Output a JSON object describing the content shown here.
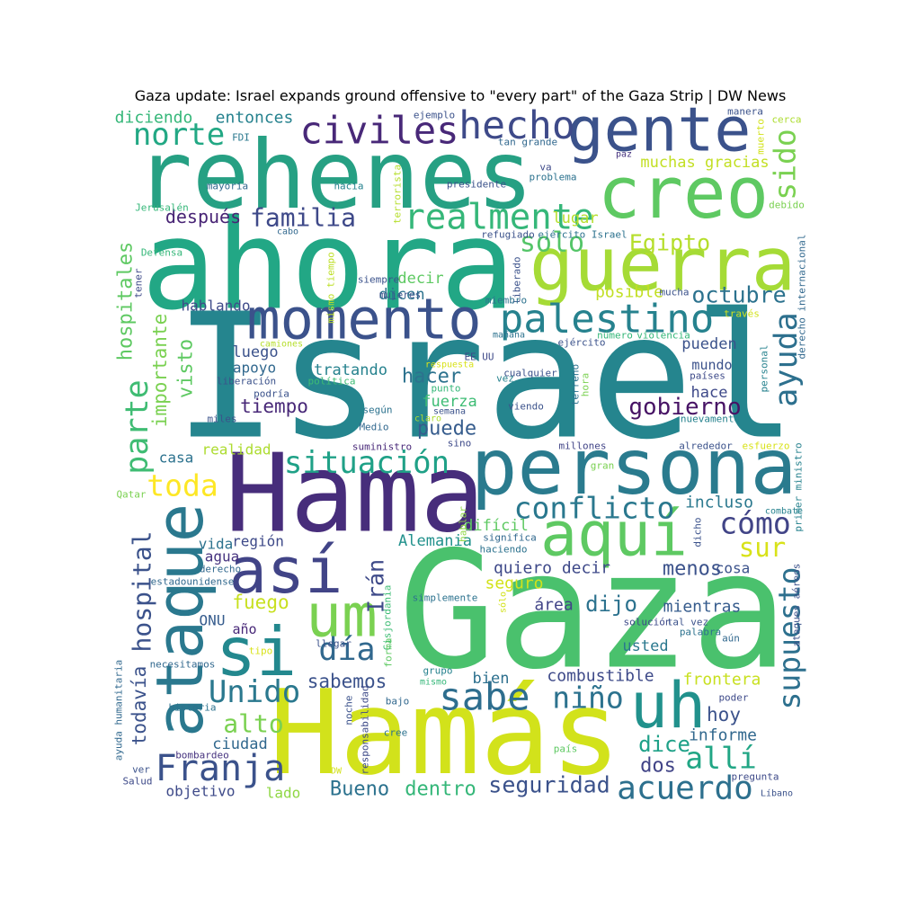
{
  "chart_data": {
    "type": "wordcloud",
    "title": "Gaza update: Israel expands ground offensive to \"every part\" of the Gaza Strip | DW News",
    "words": [
      {
        "text": "Israel",
        "weight": 96,
        "color": "#25858e"
      },
      {
        "text": "Gaza",
        "weight": 90,
        "color": "#4ac16d"
      },
      {
        "text": "Hamás",
        "weight": 65,
        "color": "#d2e21b"
      },
      {
        "text": "Hama",
        "weight": 60,
        "color": "#472d7b"
      },
      {
        "text": "ahora",
        "weight": 69,
        "color": "#22a785"
      },
      {
        "text": "rehenes",
        "weight": 52.5,
        "color": "#26a083"
      },
      {
        "text": "persona",
        "weight": 43,
        "color": "#2a7b8e"
      },
      {
        "text": "gente",
        "weight": 34,
        "color": "#3b528b"
      },
      {
        "text": "creo",
        "weight": 39.5,
        "color": "#5ec962"
      },
      {
        "text": "guerra",
        "weight": 41,
        "color": "#a5db36"
      },
      {
        "text": "ataque",
        "weight": 36,
        "color": "#2a788e"
      },
      {
        "text": "así",
        "weight": 35,
        "color": "#414487"
      },
      {
        "text": "um",
        "weight": 33,
        "color": "#7ad151"
      },
      {
        "text": "si",
        "weight": 37.5,
        "color": "#23888e"
      },
      {
        "text": "aquí",
        "weight": 34,
        "color": "#5ec962"
      },
      {
        "text": "uh",
        "weight": 35,
        "color": "#21918c"
      },
      {
        "text": "momento",
        "weight": 31,
        "color": "#3b528b"
      },
      {
        "text": "civiles",
        "weight": 21,
        "color": "#482878"
      },
      {
        "text": "hecho",
        "weight": 21.5,
        "color": "#3e4a89"
      },
      {
        "text": "palestino",
        "weight": 22,
        "color": "#26828e"
      },
      {
        "text": "norte",
        "weight": 17,
        "color": "#22a884"
      },
      {
        "text": "familia",
        "weight": 14,
        "color": "#3e4989"
      },
      {
        "text": "realmente",
        "weight": 19.5,
        "color": "#35b779"
      },
      {
        "text": "solo",
        "weight": 15,
        "color": "#54c568"
      },
      {
        "text": "Egipto",
        "weight": 12.5,
        "color": "#b5de2b"
      },
      {
        "text": "después",
        "weight": 10,
        "color": "#482475"
      },
      {
        "text": "octubre",
        "weight": 12.5,
        "color": "#2c728e"
      },
      {
        "text": "posible",
        "weight": 9,
        "color": "#c2df23"
      },
      {
        "text": "ayuda",
        "weight": 17.5,
        "color": "#2d708e"
      },
      {
        "text": "sido",
        "weight": 16.5,
        "color": "#7ad151"
      },
      {
        "text": "parte",
        "weight": 17.5,
        "color": "#3fbc73"
      },
      {
        "text": "hospitales",
        "weight": 11,
        "color": "#5ec962"
      },
      {
        "text": "importante",
        "weight": 10.5,
        "color": "#7ad151"
      },
      {
        "text": "visto",
        "weight": 11,
        "color": "#5ec962"
      },
      {
        "text": "hablando",
        "weight": 8,
        "color": "#3e4a89"
      },
      {
        "text": "luego",
        "weight": 8.5,
        "color": "#3b528b"
      },
      {
        "text": "apoyo",
        "weight": 8,
        "color": "#31688e"
      },
      {
        "text": "tratando",
        "weight": 8.5,
        "color": "#26828e"
      },
      {
        "text": "tiempo",
        "weight": 10.5,
        "color": "#482878"
      },
      {
        "text": "hacer",
        "weight": 11,
        "color": "#2c728e"
      },
      {
        "text": "fuerza",
        "weight": 8.5,
        "color": "#3dbc74"
      },
      {
        "text": "puede",
        "weight": 11,
        "color": "#365c8d"
      },
      {
        "text": "situación",
        "weight": 17,
        "color": "#1fa187"
      },
      {
        "text": "gobierno",
        "weight": 13,
        "color": "#471365"
      },
      {
        "text": "pueden",
        "weight": 8.5,
        "color": "#3b528b"
      },
      {
        "text": "mundo",
        "weight": 7.5,
        "color": "#3b528b"
      },
      {
        "text": "hace",
        "weight": 8.5,
        "color": "#3e4989"
      },
      {
        "text": "conflicto",
        "weight": 16.5,
        "color": "#2a788e"
      },
      {
        "text": "cómo",
        "weight": 16.5,
        "color": "#414487"
      },
      {
        "text": "sur",
        "weight": 14.5,
        "color": "#d8e219"
      },
      {
        "text": "incluso",
        "weight": 9,
        "color": "#2a788e"
      },
      {
        "text": "toda",
        "weight": 16.5,
        "color": "#fde725"
      },
      {
        "text": "casa",
        "weight": 8,
        "color": "#2c728e"
      },
      {
        "text": "realidad",
        "weight": 8,
        "color": "#addc30"
      },
      {
        "text": "hospital",
        "weight": 14,
        "color": "#3b528b"
      },
      {
        "text": "todavía",
        "weight": 10.5,
        "color": "#3b528b"
      },
      {
        "text": "región",
        "weight": 8,
        "color": "#3e4a89"
      },
      {
        "text": "vida",
        "weight": 8,
        "color": "#2c728e"
      },
      {
        "text": "agua",
        "weight": 8,
        "color": "#46337f"
      },
      {
        "text": "derecho",
        "weight": 5.5,
        "color": "#31688e"
      },
      {
        "text": "fuego",
        "weight": 10.5,
        "color": "#c8e020"
      },
      {
        "text": "ONU",
        "weight": 8,
        "color": "#365c8d"
      },
      {
        "text": "año",
        "weight": 7.5,
        "color": "#482878"
      },
      {
        "text": "día",
        "weight": 17.5,
        "color": "#31688e"
      },
      {
        "text": "Unido",
        "weight": 17,
        "color": "#2a788e"
      },
      {
        "text": "sabemos",
        "weight": 10.5,
        "color": "#3b528b"
      },
      {
        "text": "sabe",
        "weight": 21,
        "color": "#2e6e8e"
      },
      {
        "text": "alto",
        "weight": 14,
        "color": "#7ad151"
      },
      {
        "text": "Franja",
        "weight": 20,
        "color": "#3b528b"
      },
      {
        "text": "ciudad",
        "weight": 8.5,
        "color": "#31688e"
      },
      {
        "text": "objetivo",
        "weight": 8,
        "color": "#3e4a89"
      },
      {
        "text": "lado",
        "weight": 8,
        "color": "#8fd744"
      },
      {
        "text": "Bueno",
        "weight": 11,
        "color": "#2c728e"
      },
      {
        "text": "dentro",
        "weight": 11,
        "color": "#35b779"
      },
      {
        "text": "seguridad",
        "weight": 12.5,
        "color": "#3b528b"
      },
      {
        "text": "acuerdo",
        "weight": 18,
        "color": "#2d708e"
      },
      {
        "text": "allí",
        "weight": 16.5,
        "color": "#21a685"
      },
      {
        "text": "dice",
        "weight": 12,
        "color": "#1fa188"
      },
      {
        "text": "dos",
        "weight": 11,
        "color": "#414487"
      },
      {
        "text": "informe",
        "weight": 9,
        "color": "#31688e"
      },
      {
        "text": "hoy",
        "weight": 10.5,
        "color": "#3b528b"
      },
      {
        "text": "niño",
        "weight": 16.5,
        "color": "#2c728e"
      },
      {
        "text": "frontera",
        "weight": 9,
        "color": "#c8e020"
      },
      {
        "text": "combustible",
        "weight": 9,
        "color": "#3e4a89"
      },
      {
        "text": "bien",
        "weight": 8.5,
        "color": "#2d708e"
      },
      {
        "text": "supuesto",
        "weight": 16.5,
        "color": "#2d708e"
      },
      {
        "text": "mientras",
        "weight": 9,
        "color": "#365c8d"
      },
      {
        "text": "usted",
        "weight": 8.5,
        "color": "#2a788e"
      },
      {
        "text": "dijo",
        "weight": 12,
        "color": "#2c728e"
      },
      {
        "text": "área",
        "weight": 9,
        "color": "#414487"
      },
      {
        "text": "seguro",
        "weight": 9,
        "color": "#d2e21b"
      },
      {
        "text": "quiero decir",
        "weight": 9,
        "color": "#3e4989"
      },
      {
        "text": "menos",
        "weight": 11,
        "color": "#3b528b"
      },
      {
        "text": "cosa",
        "weight": 8,
        "color": "#3b528b"
      },
      {
        "text": "Alemania",
        "weight": 8.5,
        "color": "#21918c"
      },
      {
        "text": "Irán",
        "weight": 12.5,
        "color": "#3e4a89"
      },
      {
        "text": "difícil",
        "weight": 8.5,
        "color": "#5ec962"
      },
      {
        "text": "decir",
        "weight": 8.5,
        "color": "#5ec962"
      },
      {
        "text": "dicen",
        "weight": 8.5,
        "color": "#2c728e"
      },
      {
        "text": "lugar",
        "weight": 8.5,
        "color": "#b5de2b"
      },
      {
        "text": "muchas gracias",
        "weight": 8.5,
        "color": "#c2df23"
      },
      {
        "text": "mayoría",
        "weight": 5.5,
        "color": "#31688e"
      },
      {
        "text": "hacia",
        "weight": 5.5,
        "color": "#26828e"
      },
      {
        "text": "presidente",
        "weight": 5.5,
        "color": "#3b528b"
      },
      {
        "text": "diciendo",
        "weight": 9,
        "color": "#35b779"
      },
      {
        "text": "entonces",
        "weight": 9,
        "color": "#26828e"
      },
      {
        "text": "FDI",
        "weight": 5.5,
        "color": "#2a788e"
      },
      {
        "text": "ejemplo",
        "weight": 5.5,
        "color": "#3b528b"
      },
      {
        "text": "tan grande",
        "weight": 5.5,
        "color": "#31688e"
      },
      {
        "text": "paz",
        "weight": 5,
        "color": "#46337f"
      },
      {
        "text": "manera",
        "weight": 5.5,
        "color": "#3b528b"
      },
      {
        "text": "cerca",
        "weight": 5.5,
        "color": "#addc30"
      },
      {
        "text": "muerto",
        "weight": 5.5,
        "color": "#d2e21b"
      },
      {
        "text": "debido",
        "weight": 5.5,
        "color": "#7ad151"
      },
      {
        "text": "va",
        "weight": 5.5,
        "color": "#3e4a89"
      },
      {
        "text": "problema",
        "weight": 5.5,
        "color": "#2c728e"
      },
      {
        "text": "terrorista",
        "weight": 5.5,
        "color": "#b5de2b"
      },
      {
        "text": "Jerusalén",
        "weight": 5.5,
        "color": "#35b779"
      },
      {
        "text": "cabo",
        "weight": 5,
        "color": "#31688e"
      },
      {
        "text": "refugiado",
        "weight": 5.5,
        "color": "#3b528b"
      },
      {
        "text": "ejército Israel",
        "weight": 5.5,
        "color": "#2c728e"
      },
      {
        "text": "Defensa",
        "weight": 5.5,
        "color": "#35b779"
      },
      {
        "text": "tener",
        "weight": 5.5,
        "color": "#3e4a89"
      },
      {
        "text": "mismo tiempo",
        "weight": 5.5,
        "color": "#bddf26"
      },
      {
        "text": "siempre",
        "weight": 5.5,
        "color": "#3b528b"
      },
      {
        "text": "liberado",
        "weight": 5.5,
        "color": "#3b528b"
      },
      {
        "text": "mujeres",
        "weight": 5.5,
        "color": "#3b528b"
      },
      {
        "text": "miembro",
        "weight": 5.5,
        "color": "#2c728e"
      },
      {
        "text": "mucha",
        "weight": 5.5,
        "color": "#3b528b"
      },
      {
        "text": "través",
        "weight": 5.5,
        "color": "#d2e21b"
      },
      {
        "text": "derecho internacional",
        "weight": 5.5,
        "color": "#31688e"
      },
      {
        "text": "mañana",
        "weight": 5,
        "color": "#2c728e"
      },
      {
        "text": "número",
        "weight": 5.5,
        "color": "#35b779"
      },
      {
        "text": "violencia",
        "weight": 5.5,
        "color": "#35b779"
      },
      {
        "text": "ejército",
        "weight": 5.5,
        "color": "#3b528b"
      },
      {
        "text": "camiones",
        "weight": 5,
        "color": "#b5de2b"
      },
      {
        "text": "personal",
        "weight": 5.5,
        "color": "#26828e"
      },
      {
        "text": "países",
        "weight": 5.5,
        "color": "#3e4a89"
      },
      {
        "text": "EE UU",
        "weight": 5.5,
        "color": "#3e4989"
      },
      {
        "text": "respuesta",
        "weight": 5,
        "color": "#d8e219"
      },
      {
        "text": "cualquier",
        "weight": 5.5,
        "color": "#3b528b"
      },
      {
        "text": "vez",
        "weight": 5.5,
        "color": "#26828e"
      },
      {
        "text": "terreno",
        "weight": 5.5,
        "color": "#2c728e"
      },
      {
        "text": "hora",
        "weight": 5.5,
        "color": "#7ad151"
      },
      {
        "text": "liberación",
        "weight": 5.5,
        "color": "#3b528b"
      },
      {
        "text": "política",
        "weight": 5.5,
        "color": "#3dbc74"
      },
      {
        "text": "punto",
        "weight": 5.5,
        "color": "#35b779"
      },
      {
        "text": "podría",
        "weight": 5.5,
        "color": "#3b528b"
      },
      {
        "text": "según",
        "weight": 5.5,
        "color": "#2c728e"
      },
      {
        "text": "semana",
        "weight": 5,
        "color": "#3b528b"
      },
      {
        "text": "viendo",
        "weight": 5.5,
        "color": "#3b528b"
      },
      {
        "text": "claro",
        "weight": 5,
        "color": "#addc30"
      },
      {
        "text": "miles",
        "weight": 5.5,
        "color": "#3b528b"
      },
      {
        "text": "Medio",
        "weight": 5.5,
        "color": "#31688e"
      },
      {
        "text": "nuevamente",
        "weight": 5.5,
        "color": "#26828e"
      },
      {
        "text": "sino",
        "weight": 5.5,
        "color": "#3e4a89"
      },
      {
        "text": "suministro",
        "weight": 5.5,
        "color": "#482878"
      },
      {
        "text": "millones",
        "weight": 5.5,
        "color": "#414487"
      },
      {
        "text": "alrededor",
        "weight": 5.5,
        "color": "#3b528b"
      },
      {
        "text": "esfuerzo",
        "weight": 5.5,
        "color": "#d8e219"
      },
      {
        "text": "gran",
        "weight": 5.5,
        "color": "#7ad151"
      },
      {
        "text": "primer ministro",
        "weight": 5.5,
        "color": "#26828e"
      },
      {
        "text": "Qatar",
        "weight": 5.5,
        "color": "#7ad151"
      },
      {
        "text": "combate",
        "weight": 5,
        "color": "#26828e"
      },
      {
        "text": "hablar",
        "weight": 5.5,
        "color": "#8fd744"
      },
      {
        "text": "significa",
        "weight": 5.5,
        "color": "#31688e"
      },
      {
        "text": "haciendo",
        "weight": 5.5,
        "color": "#2c728e"
      },
      {
        "text": "dicho",
        "weight": 5.5,
        "color": "#3b528b"
      },
      {
        "text": "estadounidense",
        "weight": 5.5,
        "color": "#31688e"
      },
      {
        "text": "Cisjordania",
        "weight": 5.5,
        "color": "#3dbc74"
      },
      {
        "text": "simplemente",
        "weight": 5.5,
        "color": "#2c728e"
      },
      {
        "text": "sólo",
        "weight": 5,
        "color": "#d2e21b"
      },
      {
        "text": "solución",
        "weight": 5.5,
        "color": "#3e4a89"
      },
      {
        "text": "tal vez",
        "weight": 5.5,
        "color": "#3b528b"
      },
      {
        "text": "palabra",
        "weight": 5.5,
        "color": "#2c728e"
      },
      {
        "text": "aún",
        "weight": 5.5,
        "color": "#31688e"
      },
      {
        "text": "ataques aéreos",
        "weight": 5.5,
        "color": "#3b528b"
      },
      {
        "text": "tipo",
        "weight": 5.5,
        "color": "#d8e219"
      },
      {
        "text": "llegar",
        "weight": 5.5,
        "color": "#3b528b"
      },
      {
        "text": "forma",
        "weight": 5.5,
        "color": "#5ec962"
      },
      {
        "text": "necesitamos",
        "weight": 5.5,
        "color": "#31688e"
      },
      {
        "text": "grupo",
        "weight": 5.5,
        "color": "#26828e"
      },
      {
        "text": "mismo",
        "weight": 5,
        "color": "#35b779"
      },
      {
        "text": "ayuda humanitaria",
        "weight": 5.5,
        "color": "#31688e"
      },
      {
        "text": "historia",
        "weight": 5.5,
        "color": "#2c728e"
      },
      {
        "text": "noche",
        "weight": 5.5,
        "color": "#3b528b"
      },
      {
        "text": "bajo",
        "weight": 5.5,
        "color": "#31688e"
      },
      {
        "text": "poder",
        "weight": 5.5,
        "color": "#3e4a89"
      },
      {
        "text": "responsabilidad",
        "weight": 5.5,
        "color": "#3e4a89"
      },
      {
        "text": "cree",
        "weight": 5.5,
        "color": "#2c728e"
      },
      {
        "text": "país",
        "weight": 5.5,
        "color": "#5ec962"
      },
      {
        "text": "bombardeo",
        "weight": 5.5,
        "color": "#46337f"
      },
      {
        "text": "ver",
        "weight": 5.5,
        "color": "#3b528b"
      },
      {
        "text": "Salud",
        "weight": 5.5,
        "color": "#3e4a89"
      },
      {
        "text": "DW",
        "weight": 5,
        "color": "#d2e21b"
      },
      {
        "text": "pregunta",
        "weight": 5.5,
        "color": "#3e4a89"
      },
      {
        "text": "Líbano",
        "weight": 5,
        "color": "#3b528b"
      }
    ]
  }
}
